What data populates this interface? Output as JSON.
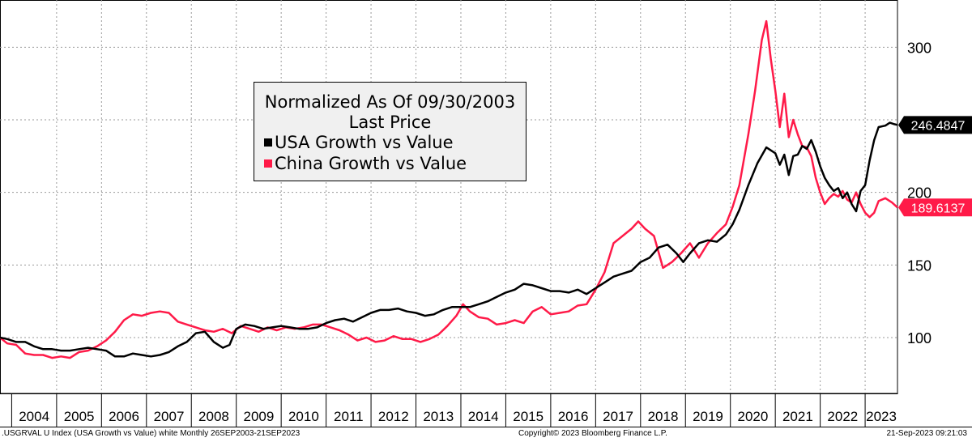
{
  "chart_data": {
    "type": "line",
    "title": "Normalized As Of 09/30/2003",
    "subtitle": "Last Price",
    "xlabel": "",
    "ylabel": "",
    "x_range": [
      2003.74,
      2023.72
    ],
    "ylim": [
      60,
      325
    ],
    "y_ticks": [
      100,
      150,
      200,
      300
    ],
    "x_tick_labels": [
      "2004",
      "2005",
      "2006",
      "2007",
      "2008",
      "2009",
      "2010",
      "2011",
      "2012",
      "2013",
      "2014",
      "2015",
      "2016",
      "2017",
      "2018",
      "2019",
      "2020",
      "2021",
      "2022",
      "2023"
    ],
    "grid": true,
    "legend_position": "top-center",
    "series": [
      {
        "name": "USA Growth vs Value",
        "color": "#000000",
        "last_value_label": "246.4847",
        "points": [
          [
            2003.74,
            100
          ],
          [
            2003.9,
            99
          ],
          [
            2004.1,
            97
          ],
          [
            2004.3,
            97
          ],
          [
            2004.5,
            94
          ],
          [
            2004.7,
            92
          ],
          [
            2004.9,
            92
          ],
          [
            2005.1,
            91
          ],
          [
            2005.3,
            91
          ],
          [
            2005.5,
            92
          ],
          [
            2005.7,
            93
          ],
          [
            2005.9,
            92
          ],
          [
            2006.1,
            91
          ],
          [
            2006.3,
            87
          ],
          [
            2006.5,
            87
          ],
          [
            2006.7,
            89
          ],
          [
            2006.9,
            88
          ],
          [
            2007.1,
            87
          ],
          [
            2007.3,
            88
          ],
          [
            2007.5,
            90
          ],
          [
            2007.7,
            94
          ],
          [
            2007.9,
            97
          ],
          [
            2008.1,
            103
          ],
          [
            2008.3,
            104
          ],
          [
            2008.5,
            97
          ],
          [
            2008.7,
            93
          ],
          [
            2008.85,
            95
          ],
          [
            2009.0,
            106
          ],
          [
            2009.2,
            109
          ],
          [
            2009.4,
            108
          ],
          [
            2009.6,
            106
          ],
          [
            2009.8,
            107
          ],
          [
            2010.0,
            108
          ],
          [
            2010.2,
            107
          ],
          [
            2010.4,
            106
          ],
          [
            2010.6,
            106
          ],
          [
            2010.8,
            107
          ],
          [
            2011.0,
            110
          ],
          [
            2011.2,
            112
          ],
          [
            2011.4,
            113
          ],
          [
            2011.6,
            111
          ],
          [
            2011.8,
            114
          ],
          [
            2012.0,
            117
          ],
          [
            2012.2,
            119
          ],
          [
            2012.4,
            119
          ],
          [
            2012.6,
            120
          ],
          [
            2012.8,
            118
          ],
          [
            2013.0,
            117
          ],
          [
            2013.2,
            115
          ],
          [
            2013.4,
            116
          ],
          [
            2013.6,
            119
          ],
          [
            2013.8,
            121
          ],
          [
            2014.0,
            121
          ],
          [
            2014.2,
            121
          ],
          [
            2014.4,
            123
          ],
          [
            2014.6,
            125
          ],
          [
            2014.8,
            128
          ],
          [
            2015.0,
            131
          ],
          [
            2015.2,
            133
          ],
          [
            2015.4,
            137
          ],
          [
            2015.6,
            136
          ],
          [
            2015.8,
            134
          ],
          [
            2016.0,
            132
          ],
          [
            2016.2,
            132
          ],
          [
            2016.4,
            131
          ],
          [
            2016.6,
            133
          ],
          [
            2016.8,
            130
          ],
          [
            2017.0,
            134
          ],
          [
            2017.2,
            138
          ],
          [
            2017.4,
            142
          ],
          [
            2017.6,
            144
          ],
          [
            2017.8,
            146
          ],
          [
            2018.0,
            152
          ],
          [
            2018.2,
            155
          ],
          [
            2018.4,
            162
          ],
          [
            2018.6,
            164
          ],
          [
            2018.8,
            158
          ],
          [
            2018.95,
            152
          ],
          [
            2019.1,
            158
          ],
          [
            2019.3,
            165
          ],
          [
            2019.5,
            167
          ],
          [
            2019.7,
            166
          ],
          [
            2019.9,
            171
          ],
          [
            2020.05,
            178
          ],
          [
            2020.2,
            188
          ],
          [
            2020.4,
            205
          ],
          [
            2020.6,
            220
          ],
          [
            2020.8,
            231
          ],
          [
            2021.0,
            227
          ],
          [
            2021.1,
            219
          ],
          [
            2021.2,
            226
          ],
          [
            2021.3,
            212
          ],
          [
            2021.4,
            225
          ],
          [
            2021.5,
            226
          ],
          [
            2021.6,
            232
          ],
          [
            2021.7,
            230
          ],
          [
            2021.8,
            236
          ],
          [
            2021.9,
            228
          ],
          [
            2022.0,
            218
          ],
          [
            2022.1,
            210
          ],
          [
            2022.2,
            205
          ],
          [
            2022.3,
            201
          ],
          [
            2022.4,
            203
          ],
          [
            2022.5,
            196
          ],
          [
            2022.6,
            200
          ],
          [
            2022.7,
            192
          ],
          [
            2022.8,
            187
          ],
          [
            2022.9,
            201
          ],
          [
            2023.0,
            205
          ],
          [
            2023.1,
            222
          ],
          [
            2023.2,
            236
          ],
          [
            2023.3,
            245
          ],
          [
            2023.45,
            246
          ],
          [
            2023.55,
            248
          ],
          [
            2023.65,
            247
          ],
          [
            2023.72,
            246.48
          ]
        ]
      },
      {
        "name": "China Growth vs Value",
        "color": "#ff1a48",
        "last_value_label": "189.6137",
        "points": [
          [
            2003.74,
            100
          ],
          [
            2003.9,
            96
          ],
          [
            2004.1,
            95
          ],
          [
            2004.3,
            89
          ],
          [
            2004.5,
            88
          ],
          [
            2004.7,
            88
          ],
          [
            2004.9,
            86
          ],
          [
            2005.1,
            87
          ],
          [
            2005.3,
            86
          ],
          [
            2005.5,
            90
          ],
          [
            2005.7,
            91
          ],
          [
            2005.9,
            94
          ],
          [
            2006.1,
            98
          ],
          [
            2006.3,
            104
          ],
          [
            2006.5,
            112
          ],
          [
            2006.7,
            116
          ],
          [
            2006.9,
            115
          ],
          [
            2007.1,
            117
          ],
          [
            2007.3,
            118
          ],
          [
            2007.5,
            117
          ],
          [
            2007.7,
            111
          ],
          [
            2007.9,
            109
          ],
          [
            2008.1,
            107
          ],
          [
            2008.3,
            105
          ],
          [
            2008.5,
            104
          ],
          [
            2008.7,
            106
          ],
          [
            2008.9,
            103
          ],
          [
            2009.1,
            108
          ],
          [
            2009.3,
            106
          ],
          [
            2009.5,
            104
          ],
          [
            2009.7,
            107
          ],
          [
            2009.9,
            105
          ],
          [
            2010.1,
            107
          ],
          [
            2010.3,
            106
          ],
          [
            2010.5,
            107
          ],
          [
            2010.7,
            109
          ],
          [
            2010.9,
            109
          ],
          [
            2011.1,
            107
          ],
          [
            2011.3,
            105
          ],
          [
            2011.5,
            102
          ],
          [
            2011.7,
            98
          ],
          [
            2011.9,
            100
          ],
          [
            2012.1,
            97
          ],
          [
            2012.3,
            98
          ],
          [
            2012.5,
            101
          ],
          [
            2012.7,
            99
          ],
          [
            2012.9,
            99
          ],
          [
            2013.1,
            97
          ],
          [
            2013.3,
            99
          ],
          [
            2013.5,
            102
          ],
          [
            2013.7,
            108
          ],
          [
            2013.9,
            115
          ],
          [
            2014.05,
            123
          ],
          [
            2014.2,
            118
          ],
          [
            2014.4,
            114
          ],
          [
            2014.6,
            113
          ],
          [
            2014.8,
            109
          ],
          [
            2015.0,
            110
          ],
          [
            2015.2,
            112
          ],
          [
            2015.4,
            110
          ],
          [
            2015.6,
            118
          ],
          [
            2015.8,
            121
          ],
          [
            2016.0,
            116
          ],
          [
            2016.2,
            117
          ],
          [
            2016.4,
            118
          ],
          [
            2016.6,
            122
          ],
          [
            2016.8,
            123
          ],
          [
            2017.0,
            133
          ],
          [
            2017.2,
            145
          ],
          [
            2017.4,
            165
          ],
          [
            2017.6,
            170
          ],
          [
            2017.8,
            175
          ],
          [
            2017.95,
            180
          ],
          [
            2018.1,
            175
          ],
          [
            2018.3,
            170
          ],
          [
            2018.5,
            148
          ],
          [
            2018.7,
            152
          ],
          [
            2018.9,
            158
          ],
          [
            2019.1,
            165
          ],
          [
            2019.3,
            155
          ],
          [
            2019.5,
            165
          ],
          [
            2019.7,
            172
          ],
          [
            2019.9,
            178
          ],
          [
            2020.05,
            190
          ],
          [
            2020.2,
            205
          ],
          [
            2020.4,
            240
          ],
          [
            2020.55,
            270
          ],
          [
            2020.7,
            305
          ],
          [
            2020.8,
            318
          ],
          [
            2020.9,
            292
          ],
          [
            2021.0,
            270
          ],
          [
            2021.1,
            245
          ],
          [
            2021.2,
            268
          ],
          [
            2021.3,
            238
          ],
          [
            2021.4,
            250
          ],
          [
            2021.5,
            240
          ],
          [
            2021.6,
            232
          ],
          [
            2021.7,
            231
          ],
          [
            2021.8,
            225
          ],
          [
            2021.9,
            210
          ],
          [
            2022.0,
            200
          ],
          [
            2022.1,
            192
          ],
          [
            2022.2,
            196
          ],
          [
            2022.3,
            199
          ],
          [
            2022.4,
            197
          ],
          [
            2022.5,
            201
          ],
          [
            2022.6,
            195
          ],
          [
            2022.7,
            193
          ],
          [
            2022.8,
            200
          ],
          [
            2022.9,
            192
          ],
          [
            2023.0,
            186
          ],
          [
            2023.1,
            183
          ],
          [
            2023.2,
            186
          ],
          [
            2023.3,
            194
          ],
          [
            2023.45,
            196
          ],
          [
            2023.6,
            193
          ],
          [
            2023.72,
            189.61
          ]
        ]
      }
    ]
  },
  "footer": {
    "left": ".USGRVAL U Index (USA Growth vs Value) white  Monthly 26SEP2003-21SEP2023",
    "center": "Copyright© 2023 Bloomberg Finance L.P.",
    "right": "21-Sep-2023 09:21:03"
  }
}
